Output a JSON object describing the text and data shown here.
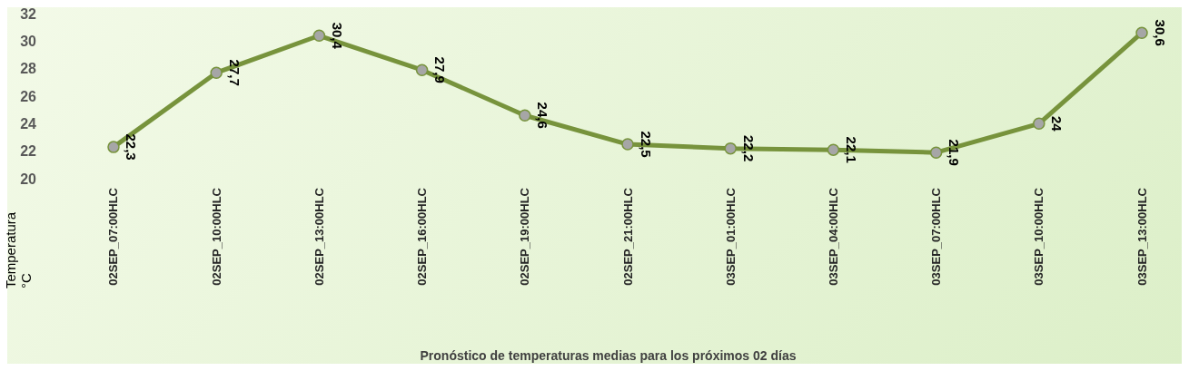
{
  "chart_data": {
    "type": "line",
    "xlabel": "Pronóstico de temperaturas medias para los próximos 02 días",
    "ylabel": "Temperatura\n°C",
    "categories": [
      "02SEP_07:00HLC",
      "02SEP_10:00HLC",
      "02SEP_13:00HLC",
      "02SEP_16:00HLC",
      "02SEP_19:00HLC",
      "02SEP_21:00HLC",
      "03SEP_01:00HLC",
      "03SEP_04:00HLC",
      "03SEP_07:00HLC",
      "03SEP_10:00HLC",
      "03SEP_13:00HLC"
    ],
    "series": [
      {
        "color": "#77933c",
        "values": [
          22.3,
          27.7,
          30.4,
          27.9,
          24.6,
          22.5,
          22.2,
          22.1,
          21.9,
          24,
          30.6
        ],
        "value_labels": [
          "22,3",
          "27,7",
          "30,4",
          "27,9",
          "24,6",
          "22,5",
          "22,2",
          "22,1",
          "21,9",
          "24",
          "30,6"
        ]
      }
    ],
    "ylim": [
      20,
      32
    ],
    "yticks": [
      20,
      22,
      24,
      26,
      28,
      30,
      32
    ],
    "grid": false,
    "legend": false,
    "marker": "circle",
    "line_style": "solid"
  }
}
